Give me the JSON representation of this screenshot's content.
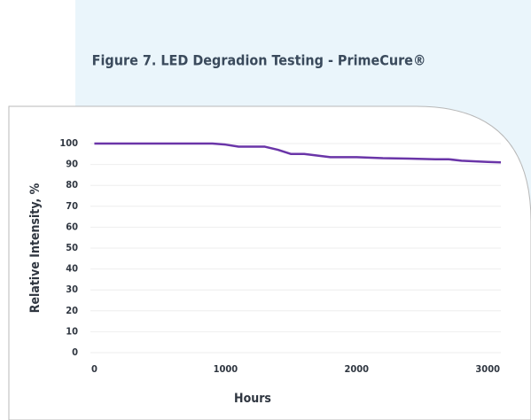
{
  "chart_data": {
    "type": "line",
    "title": "Figure 7. LED Degradion Testing - PrimeCure®",
    "x_label": "Hours",
    "y_label": "Relative Intensity, %",
    "x": [
      0,
      700,
      900,
      1000,
      1100,
      1300,
      1400,
      1500,
      1600,
      1800,
      2000,
      2200,
      2400,
      2600,
      2700,
      2800,
      3000,
      3100
    ],
    "values": [
      100,
      100,
      100,
      99.5,
      98.5,
      98.5,
      97,
      95,
      95,
      93.5,
      93.5,
      93,
      92.8,
      92.5,
      92.5,
      91.8,
      91.2,
      91
    ],
    "color": "#6a35a8",
    "xlim": [
      -30,
      3100
    ],
    "xticks": [
      0,
      1000,
      2000,
      3000
    ],
    "ylim": [
      0,
      100
    ],
    "yticks": [
      0,
      10,
      20,
      30,
      40,
      50,
      60,
      70,
      80,
      90,
      100
    ],
    "grid": true
  }
}
